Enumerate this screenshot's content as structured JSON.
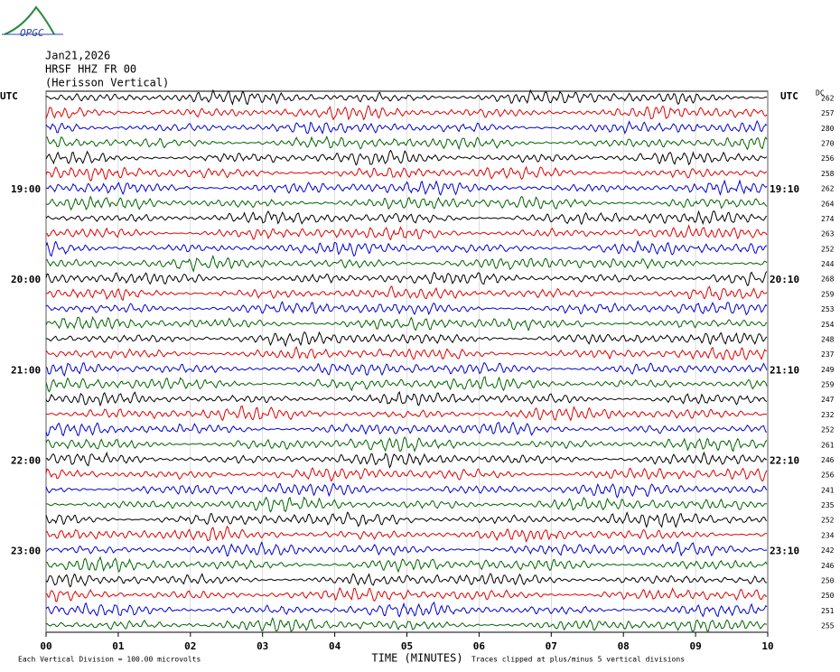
{
  "logo": {
    "text": "OPGC"
  },
  "header": {
    "date": "Jan21,2026",
    "station": "HRSF HHZ FR 00",
    "name": "(Herisson Vertical)"
  },
  "left_axis": {
    "title": "UTC",
    "labels": [
      "19:00",
      "20:00",
      "21:00",
      "22:00",
      "23:00"
    ]
  },
  "right_axis": {
    "title": "UTC",
    "labels": [
      "19:10",
      "20:10",
      "21:10",
      "22:10",
      "23:10"
    ]
  },
  "dc": {
    "title": "DC",
    "values": [
      262,
      257,
      280,
      270,
      256,
      258,
      262,
      264,
      274,
      263,
      252,
      244,
      268,
      259,
      253,
      254,
      248,
      237,
      249,
      259,
      247,
      232,
      252,
      261,
      246,
      256,
      241,
      235,
      252,
      234,
      242,
      246,
      250,
      250,
      251,
      255
    ]
  },
  "trace_colors": [
    "#000000",
    "#e00000",
    "#0000d0",
    "#006400"
  ],
  "x_axis": {
    "ticks": [
      "00",
      "01",
      "02",
      "03",
      "04",
      "05",
      "06",
      "07",
      "08",
      "09",
      "10"
    ],
    "title": "TIME (MINUTES)"
  },
  "footer": {
    "scale": "Each Vertical Division =  100.00 microvolts",
    "clip": "Traces clipped at plus/minus 5 vertical divisions"
  }
}
